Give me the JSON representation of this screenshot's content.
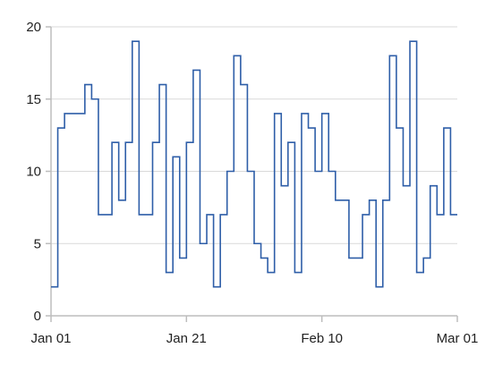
{
  "chart_data": {
    "type": "line",
    "line_shape": "step",
    "title": "",
    "xlabel": "",
    "ylabel": "",
    "x_start": "2024-01-01",
    "x_end": "2024-03-01",
    "ylim": [
      0,
      20
    ],
    "y_ticks": [
      0,
      5,
      10,
      15,
      20
    ],
    "x_ticks": [
      {
        "date": "2024-01-01",
        "label": "Jan 01"
      },
      {
        "date": "2024-01-21",
        "label": "Jan 21"
      },
      {
        "date": "2024-02-10",
        "label": "Feb 10"
      },
      {
        "date": "2024-03-01",
        "label": "Mar 01"
      }
    ],
    "grid": {
      "horizontal": true,
      "vertical": false
    },
    "line_color": "#2e5ea8",
    "series": [
      {
        "x": [
          "2024-01-01",
          "2024-01-02",
          "2024-01-03",
          "2024-01-04",
          "2024-01-05",
          "2024-01-06",
          "2024-01-07",
          "2024-01-08",
          "2024-01-09",
          "2024-01-10",
          "2024-01-11",
          "2024-01-12",
          "2024-01-13",
          "2024-01-14",
          "2024-01-15",
          "2024-01-16",
          "2024-01-17",
          "2024-01-18",
          "2024-01-19",
          "2024-01-20",
          "2024-01-21",
          "2024-01-22",
          "2024-01-23",
          "2024-01-24",
          "2024-01-25",
          "2024-01-26",
          "2024-01-27",
          "2024-01-28",
          "2024-01-29",
          "2024-01-30",
          "2024-01-31",
          "2024-02-01",
          "2024-02-02",
          "2024-02-03",
          "2024-02-04",
          "2024-02-05",
          "2024-02-06",
          "2024-02-07",
          "2024-02-08",
          "2024-02-09",
          "2024-02-10",
          "2024-02-11",
          "2024-02-12",
          "2024-02-13",
          "2024-02-14",
          "2024-02-15",
          "2024-02-16",
          "2024-02-17",
          "2024-02-18",
          "2024-02-19",
          "2024-02-20",
          "2024-02-21",
          "2024-02-22",
          "2024-02-23",
          "2024-02-24",
          "2024-02-25",
          "2024-02-26",
          "2024-02-27",
          "2024-02-28",
          "2024-02-29"
        ],
        "values": [
          2,
          13,
          14,
          14,
          14,
          16,
          15,
          7,
          7,
          12,
          8,
          12,
          19,
          7,
          7,
          12,
          16,
          3,
          11,
          4,
          12,
          17,
          5,
          7,
          2,
          7,
          10,
          18,
          16,
          10,
          5,
          4,
          3,
          14,
          9,
          12,
          3,
          14,
          13,
          10,
          14,
          10,
          8,
          8,
          4,
          4,
          7,
          8,
          2,
          8,
          18,
          13,
          9,
          19,
          3,
          4,
          9,
          7,
          13,
          7
        ]
      }
    ]
  }
}
